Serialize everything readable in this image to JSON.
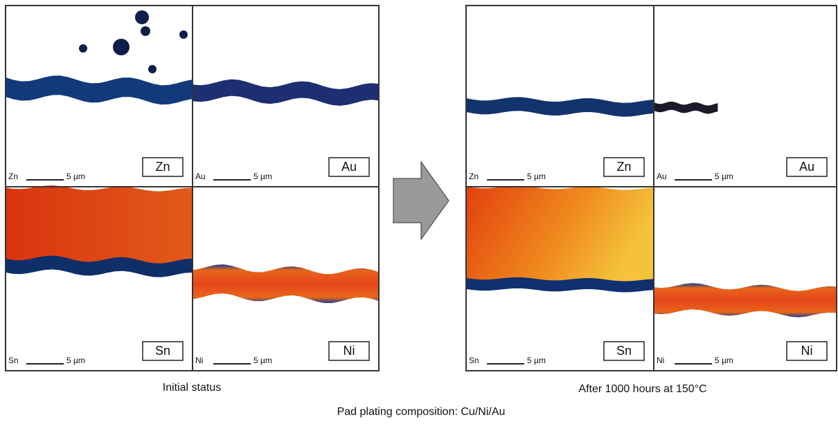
{
  "panels": [
    {
      "caption": "Initial status",
      "cells": [
        {
          "corner_label": "Zn",
          "scale": "5 µm",
          "box_label": "Zn"
        },
        {
          "corner_label": "Au",
          "scale": "5 µm",
          "box_label": "Au"
        },
        {
          "corner_label": "Sn",
          "scale": "5 µm",
          "box_label": "Sn"
        },
        {
          "corner_label": "Ni",
          "scale": "5 µm",
          "box_label": "Ni"
        }
      ]
    },
    {
      "caption": "After 1000 hours at 150°C",
      "cells": [
        {
          "corner_label": "Zn",
          "scale": "5 µm",
          "box_label": "Zn"
        },
        {
          "corner_label": "Au",
          "scale": "5 µm",
          "box_label": "Au"
        },
        {
          "corner_label": "Sn",
          "scale": "5 µm",
          "box_label": "Sn"
        },
        {
          "corner_label": "Ni",
          "scale": "5 µm",
          "box_label": "Ni"
        }
      ]
    }
  ],
  "footer": "Pad plating composition: Cu/Ni/Au"
}
